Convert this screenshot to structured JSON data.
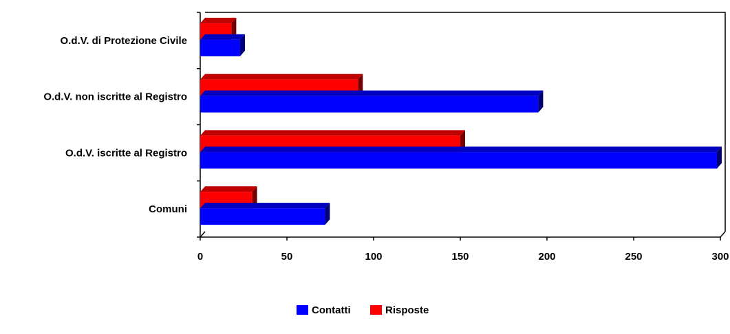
{
  "chart_data": {
    "type": "bar",
    "orientation": "horizontal",
    "categories": [
      "Comuni",
      "O.d.V. iscritte al Registro",
      "O.d.V. non iscritte al Registro",
      "O.d.V. di Protezione Civile"
    ],
    "series": [
      {
        "name": "Contatti",
        "color": "#0000ff",
        "values": [
          72,
          298,
          195,
          23
        ]
      },
      {
        "name": "Risposte",
        "color": "#ff0000",
        "values": [
          30,
          150,
          91,
          18
        ]
      }
    ],
    "xlim": [
      0,
      300
    ],
    "xticks": [
      "0",
      "50",
      "100",
      "150",
      "200",
      "250",
      "300"
    ],
    "legend": "bottom-center",
    "style": "3d"
  }
}
